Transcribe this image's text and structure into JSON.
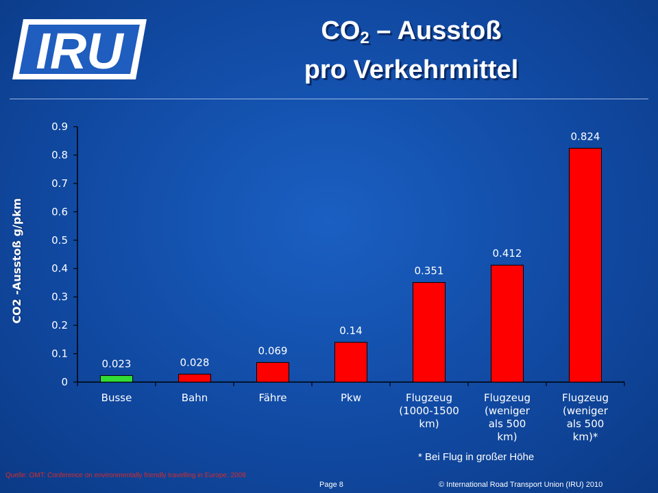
{
  "logo": {
    "text": "IRU",
    "bg": "#ffffff",
    "fg": "#1f5dbf"
  },
  "title": {
    "line1_main": "CO",
    "line1_sub": "2",
    "line1_rest": " – Ausstoß",
    "line2": "pro Verkehrmittel"
  },
  "chart_data": {
    "type": "bar",
    "ylabel": "CO2 -Ausstoß g/pkm",
    "xlabel": "",
    "ylim": [
      0,
      0.9
    ],
    "yticks": [
      "0",
      "0.1",
      "0.2",
      "0.3",
      "0.4",
      "0.5",
      "0.6",
      "0.7",
      "0.8",
      "0.9"
    ],
    "grid": false,
    "categories": [
      [
        "Busse"
      ],
      [
        "Bahn"
      ],
      [
        "Fähre"
      ],
      [
        "Pkw"
      ],
      [
        "Flugzeug",
        "(1000-1500",
        "km)"
      ],
      [
        "Flugzeug",
        "(weniger",
        "als 500",
        "km)"
      ],
      [
        "Flugzeug",
        "(weniger",
        "als 500",
        "km)*"
      ]
    ],
    "values": [
      0.023,
      0.028,
      0.069,
      0.14,
      0.351,
      0.412,
      0.824
    ],
    "data_labels": [
      "0.023",
      "0.028",
      "0.069",
      "0.14",
      "0.351",
      "0.412",
      "0.824"
    ],
    "colors": [
      "#33dd33",
      "#ff0000",
      "#ff0000",
      "#ff0000",
      "#ff0000",
      "#ff0000",
      "#ff0000"
    ]
  },
  "footnote": "* Bei Flug in großer Höhe",
  "source": "Quelle: OMT: Conference on environmentally friendly travelling in Europe, 2008",
  "page": "Page 8",
  "copyright": "© International Road Transport Union (IRU) 2010"
}
